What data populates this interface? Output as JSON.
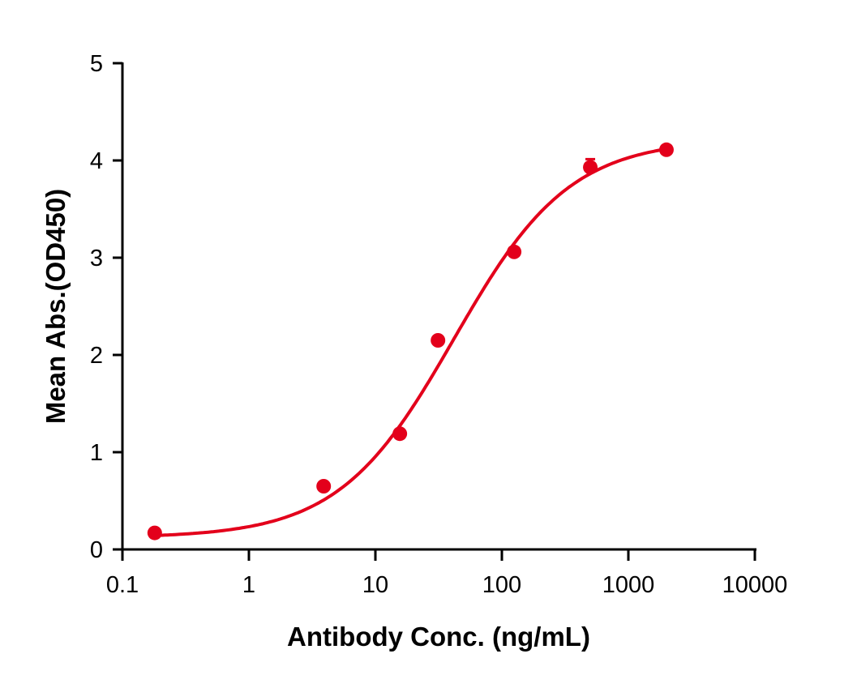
{
  "chart_data": {
    "type": "scatter",
    "title": "",
    "xlabel": "Antibody Conc. (ng/mL)",
    "ylabel": "Mean Abs.(OD450)",
    "xscale": "log",
    "xlim": [
      0.1,
      10000
    ],
    "ylim": [
      0,
      5
    ],
    "xticks": [
      "0.1",
      "1",
      "10",
      "100",
      "1000",
      "10000"
    ],
    "yticks": [
      "0",
      "1",
      "2",
      "3",
      "4",
      "5"
    ],
    "grid": false,
    "legend": null,
    "color": "#e3001b",
    "series": [
      {
        "name": "Mean Abs",
        "x": [
          0.18,
          3.9,
          15.6,
          31.25,
          125,
          500,
          2000
        ],
        "y": [
          0.17,
          0.65,
          1.19,
          2.15,
          3.06,
          3.93,
          4.11
        ],
        "fit": "4-parameter logistic curve"
      }
    ]
  }
}
